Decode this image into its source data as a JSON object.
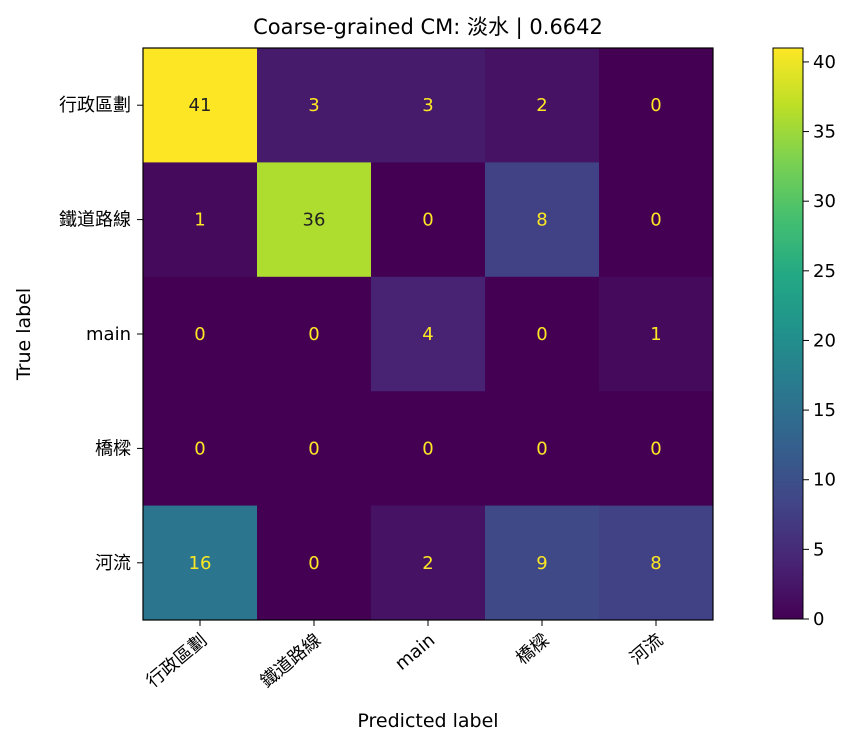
{
  "chart_data": {
    "type": "heatmap",
    "title": "Coarse-grained CM: 淡水 | 0.6642",
    "xlabel": "Predicted label",
    "ylabel": "True label",
    "x_categories": [
      "行政區劃",
      "鐵道路線",
      "main",
      "橋樑",
      "河流"
    ],
    "y_categories": [
      "行政區劃",
      "鐵道路線",
      "main",
      "橋樑",
      "河流"
    ],
    "values": [
      [
        41,
        3,
        3,
        2,
        0
      ],
      [
        1,
        36,
        0,
        8,
        0
      ],
      [
        0,
        0,
        4,
        0,
        1
      ],
      [
        0,
        0,
        0,
        0,
        0
      ],
      [
        16,
        0,
        2,
        9,
        8
      ]
    ],
    "colormap": "viridis",
    "colorbar": {
      "range": [
        0,
        41
      ],
      "ticks": [
        "0",
        "5",
        "10",
        "15",
        "20",
        "25",
        "30",
        "35",
        "40"
      ]
    },
    "text_colors": {
      "dark_cell": "#fde725",
      "light_cell": "#222222"
    }
  }
}
